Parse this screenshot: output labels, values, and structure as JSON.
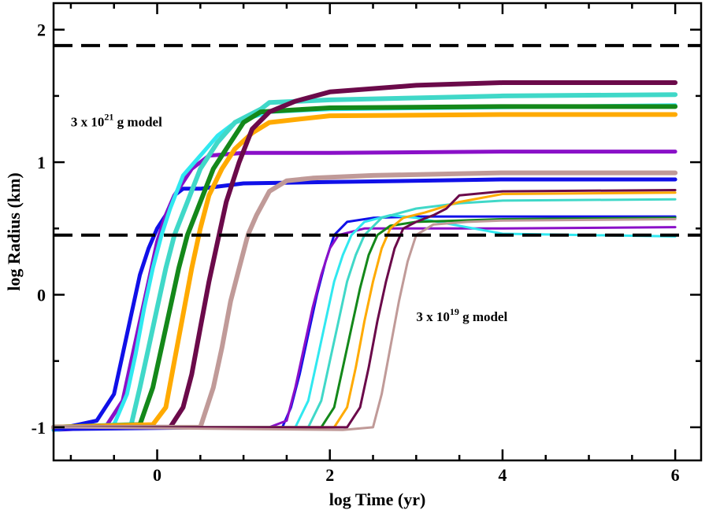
{
  "chart_data": {
    "type": "line",
    "title": "",
    "xlabel": "log Time (yr)",
    "ylabel": "log Radius (km)",
    "xlim": [
      -1.2,
      6.3
    ],
    "ylim": [
      -1.25,
      2.2
    ],
    "xticks": [
      0,
      2,
      4,
      6
    ],
    "xtick_labels": [
      "0",
      "2",
      "4",
      "6"
    ],
    "yticks": [
      -1,
      0,
      1,
      2
    ],
    "ytick_labels": [
      "-1",
      "0",
      "1",
      "2"
    ],
    "reference_lines": [
      {
        "name": "upper-dashed-line",
        "y": 1.88,
        "style": "dashed",
        "color": "#000000"
      },
      {
        "name": "lower-dashed-line",
        "y": 0.45,
        "style": "dashed",
        "color": "#000000"
      }
    ],
    "annotations": [
      {
        "name": "large-model",
        "text": "3 x 10",
        "sup": "21",
        "suffix": " g model",
        "x": -1.0,
        "y": 1.27
      },
      {
        "name": "small-model",
        "text": "3 x 10",
        "sup": "19",
        "suffix": " g model",
        "x": 3.0,
        "y": -0.2
      }
    ],
    "series": [
      {
        "name": "blue-21",
        "color": "#1010e8",
        "width": 5,
        "x": [
          -1.2,
          -0.7,
          -0.5,
          -0.4,
          -0.3,
          -0.2,
          -0.1,
          0.0,
          0.1,
          0.2,
          0.3,
          0.5,
          1.0,
          2.0,
          4.0,
          6.0
        ],
        "y": [
          -1.02,
          -0.95,
          -0.75,
          -0.45,
          -0.15,
          0.15,
          0.35,
          0.5,
          0.6,
          0.75,
          0.8,
          0.8,
          0.84,
          0.85,
          0.87,
          0.87
        ]
      },
      {
        "name": "purple-21",
        "color": "#8a10c8",
        "width": 5,
        "x": [
          -1.2,
          -0.6,
          -0.4,
          -0.3,
          -0.2,
          -0.1,
          0.0,
          0.1,
          0.2,
          0.4,
          0.6,
          1.0,
          2.0,
          4.0,
          6.0
        ],
        "y": [
          -1.02,
          -1.0,
          -0.8,
          -0.5,
          -0.2,
          0.1,
          0.4,
          0.6,
          0.75,
          0.95,
          1.05,
          1.07,
          1.07,
          1.08,
          1.08
        ]
      },
      {
        "name": "cyan-21",
        "color": "#30e8f0",
        "width": 5,
        "x": [
          -1.2,
          -0.5,
          -0.35,
          -0.25,
          -0.15,
          -0.05,
          0.05,
          0.15,
          0.3,
          0.5,
          0.7,
          0.9,
          1.3,
          2.0,
          6.0
        ],
        "y": [
          -1.02,
          -0.98,
          -0.75,
          -0.45,
          -0.1,
          0.2,
          0.45,
          0.65,
          0.9,
          1.05,
          1.2,
          1.3,
          1.38,
          1.4,
          1.43
        ]
      },
      {
        "name": "turquoise-21",
        "color": "#40d8c8",
        "width": 6,
        "x": [
          -1.2,
          -0.3,
          -0.2,
          -0.1,
          0.0,
          0.1,
          0.2,
          0.35,
          0.5,
          0.7,
          0.9,
          1.2,
          1.3,
          2.0,
          4.0,
          6.0
        ],
        "y": [
          -1.0,
          -0.98,
          -0.7,
          -0.4,
          -0.1,
          0.2,
          0.45,
          0.7,
          0.95,
          1.15,
          1.3,
          1.4,
          1.45,
          1.47,
          1.5,
          1.51
        ]
      },
      {
        "name": "green-21",
        "color": "#14881a",
        "width": 6,
        "x": [
          -1.2,
          -0.2,
          -0.05,
          0.05,
          0.15,
          0.25,
          0.35,
          0.5,
          0.65,
          0.8,
          1.0,
          1.2,
          2.0,
          4.0,
          6.0
        ],
        "y": [
          -1.0,
          -0.98,
          -0.7,
          -0.4,
          -0.1,
          0.2,
          0.45,
          0.7,
          0.95,
          1.1,
          1.3,
          1.38,
          1.41,
          1.42,
          1.42
        ]
      },
      {
        "name": "orange-21",
        "color": "#ffaa00",
        "width": 6,
        "x": [
          -1.2,
          -0.05,
          0.1,
          0.2,
          0.3,
          0.4,
          0.5,
          0.6,
          0.75,
          0.9,
          1.1,
          1.3,
          2.0,
          4.0,
          6.0
        ],
        "y": [
          -1.0,
          -0.98,
          -0.85,
          -0.5,
          -0.15,
          0.2,
          0.5,
          0.75,
          0.95,
          1.1,
          1.22,
          1.3,
          1.35,
          1.36,
          1.36
        ]
      },
      {
        "name": "maroon-21",
        "color": "#6b0a4a",
        "width": 6,
        "x": [
          -1.2,
          0.15,
          0.3,
          0.4,
          0.5,
          0.6,
          0.7,
          0.8,
          0.95,
          1.1,
          1.3,
          1.6,
          2.0,
          3.0,
          4.0,
          6.0
        ],
        "y": [
          -1.0,
          -1.0,
          -0.85,
          -0.6,
          -0.25,
          0.1,
          0.4,
          0.7,
          1.0,
          1.25,
          1.38,
          1.46,
          1.53,
          1.58,
          1.6,
          1.6
        ]
      },
      {
        "name": "rosybrown-21",
        "color": "#c09a98",
        "width": 6,
        "x": [
          -1.2,
          0.5,
          0.65,
          0.75,
          0.85,
          0.95,
          1.05,
          1.15,
          1.3,
          1.5,
          1.8,
          2.5,
          4.0,
          6.0
        ],
        "y": [
          -1.0,
          -1.0,
          -0.7,
          -0.4,
          -0.05,
          0.2,
          0.45,
          0.6,
          0.78,
          0.86,
          0.88,
          0.9,
          0.92,
          0.92
        ]
      },
      {
        "name": "blue-19",
        "color": "#1010e8",
        "width": 3,
        "x": [
          -1.2,
          1.45,
          1.55,
          1.65,
          1.75,
          1.85,
          1.95,
          2.05,
          2.2,
          2.5,
          3.0,
          4.0,
          6.0
        ],
        "y": [
          -1.02,
          -1.0,
          -0.85,
          -0.6,
          -0.3,
          0.0,
          0.25,
          0.45,
          0.55,
          0.58,
          0.59,
          0.59,
          0.59
        ]
      },
      {
        "name": "purple-19",
        "color": "#8a10c8",
        "width": 3,
        "x": [
          -1.2,
          1.3,
          1.5,
          1.6,
          1.7,
          1.8,
          1.9,
          2.0,
          2.1,
          2.4,
          2.8,
          4.0,
          6.0
        ],
        "y": [
          -1.0,
          -1.0,
          -0.95,
          -0.7,
          -0.4,
          -0.1,
          0.15,
          0.35,
          0.45,
          0.5,
          0.5,
          0.5,
          0.51
        ]
      },
      {
        "name": "cyan-19",
        "color": "#30e8f0",
        "width": 3,
        "x": [
          -1.2,
          1.6,
          1.75,
          1.85,
          1.95,
          2.05,
          2.15,
          2.25,
          2.4,
          2.7,
          3.0,
          4.0,
          6.0
        ],
        "y": [
          -1.0,
          -1.0,
          -0.8,
          -0.5,
          -0.2,
          0.1,
          0.3,
          0.45,
          0.55,
          0.6,
          0.58,
          0.46,
          0.44
        ]
      },
      {
        "name": "turquoise-19",
        "color": "#40d8c8",
        "width": 3,
        "x": [
          -1.2,
          1.75,
          1.9,
          2.0,
          2.1,
          2.2,
          2.3,
          2.4,
          2.6,
          3.0,
          3.5,
          4.0,
          6.0
        ],
        "y": [
          -1.0,
          -1.0,
          -0.8,
          -0.5,
          -0.2,
          0.1,
          0.3,
          0.45,
          0.58,
          0.65,
          0.69,
          0.71,
          0.72
        ]
      },
      {
        "name": "green-19",
        "color": "#14881a",
        "width": 3,
        "x": [
          -1.2,
          1.9,
          2.05,
          2.15,
          2.25,
          2.35,
          2.45,
          2.55,
          2.7,
          3.0,
          3.5,
          4.0,
          6.0
        ],
        "y": [
          -1.0,
          -1.0,
          -0.85,
          -0.55,
          -0.25,
          0.05,
          0.3,
          0.45,
          0.52,
          0.55,
          0.56,
          0.57,
          0.58
        ]
      },
      {
        "name": "orange-19",
        "color": "#ffaa00",
        "width": 3,
        "x": [
          -1.2,
          2.05,
          2.2,
          2.3,
          2.4,
          2.5,
          2.6,
          2.7,
          2.85,
          3.1,
          3.5,
          4.0,
          6.0
        ],
        "y": [
          -1.0,
          -1.0,
          -0.85,
          -0.55,
          -0.2,
          0.1,
          0.35,
          0.5,
          0.58,
          0.62,
          0.7,
          0.76,
          0.77
        ]
      },
      {
        "name": "maroon-19",
        "color": "#6b0a4a",
        "width": 3,
        "x": [
          -1.2,
          2.2,
          2.35,
          2.45,
          2.55,
          2.65,
          2.75,
          2.85,
          3.0,
          3.2,
          3.35,
          3.5,
          4.0,
          6.0
        ],
        "y": [
          -1.0,
          -1.0,
          -0.85,
          -0.55,
          -0.2,
          0.1,
          0.35,
          0.5,
          0.55,
          0.6,
          0.65,
          0.75,
          0.78,
          0.79
        ]
      },
      {
        "name": "rosybrown-19",
        "color": "#c09a98",
        "width": 3,
        "x": [
          -1.2,
          2.15,
          2.5,
          2.6,
          2.7,
          2.8,
          2.9,
          3.0,
          3.2,
          3.6,
          4.0,
          6.0
        ],
        "y": [
          -1.0,
          -1.02,
          -1.0,
          -0.75,
          -0.4,
          -0.05,
          0.25,
          0.45,
          0.53,
          0.55,
          0.56,
          0.57
        ]
      }
    ]
  }
}
